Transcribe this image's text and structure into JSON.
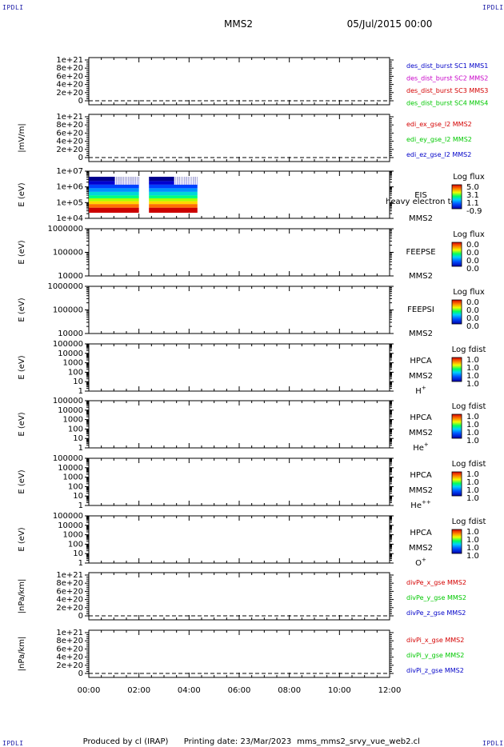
{
  "header": {
    "corner_mark": "IPDLI",
    "mission": "MMS2",
    "date": "05/Jul/2015 00:00"
  },
  "footer": {
    "credit": "Produced by cl (IRAP)",
    "printing": "Printing date: 23/Mar/2023",
    "script": "mms_mms2_srvy_vue_web2.cl"
  },
  "colors": {
    "blue": "#0000c8",
    "magenta": "#c800c8",
    "red": "#d40000",
    "green": "#00c800"
  },
  "chart_data": {
    "type": "heatmap",
    "x_ticks": [
      "00:00",
      "02:00",
      "04:00",
      "06:00",
      "08:00",
      "10:00",
      "12:00"
    ],
    "x_range": [
      "00:00",
      "12:00"
    ],
    "panels": [
      {
        "kind": "line",
        "ylabel": "",
        "yticks": [
          "0",
          "2e+20",
          "4e+20",
          "6e+20",
          "8e+20",
          "1e+21"
        ],
        "legend": [
          {
            "text": "des_dist_burst SC1 MMS1",
            "color": "#0000c8"
          },
          {
            "text": "des_dist_burst SC2 MMS2",
            "color": "#c800c8"
          },
          {
            "text": "des_dist_burst SC3 MMS3",
            "color": "#d40000"
          },
          {
            "text": "des_dist_burst SC4 MMS4",
            "color": "#00c800"
          }
        ],
        "zero_line": true
      },
      {
        "kind": "line",
        "ylabel": "|mV/m|",
        "yticks": [
          "0",
          "2e+20",
          "4e+20",
          "6e+20",
          "8e+20",
          "1e+21"
        ],
        "legend": [
          {
            "text": "edi_ex_gse_l2 MMS2",
            "color": "#d40000"
          },
          {
            "text": "edi_ey_gse_l2 MMS2",
            "color": "#00c800"
          },
          {
            "text": "edi_ez_gse_l2 MMS2",
            "color": "#0000c8"
          }
        ],
        "zero_line": true
      },
      {
        "kind": "spectrogram",
        "ylabel": "E (eV)",
        "yticks": [
          "1e+04",
          "1e+05",
          "1e+06",
          "1e+07"
        ],
        "instrument": "EIS",
        "overlay_label": "heavy electron tof",
        "sc_label": "MMS2",
        "species": "",
        "cbar_title": "Log flux",
        "cbar_values": [
          "5.0",
          "3.1",
          "1.1",
          "-0.9"
        ],
        "data_segments": [
          {
            "start": "00:00",
            "end": "02:00"
          },
          {
            "start": "02:24",
            "end": "04:20"
          }
        ]
      },
      {
        "kind": "spectrogram",
        "ylabel": "E (eV)",
        "yticks": [
          "10000",
          "100000",
          "1000000"
        ],
        "instrument": "FEEPSE",
        "overlay_label": "",
        "sc_label": "MMS2",
        "species": "",
        "cbar_title": "Log flux",
        "cbar_values": [
          "0.0",
          "0.0",
          "0.0",
          "0.0"
        ]
      },
      {
        "kind": "spectrogram",
        "ylabel": "E (eV)",
        "yticks": [
          "10000",
          "100000",
          "1000000"
        ],
        "instrument": "FEEPSI",
        "overlay_label": "",
        "sc_label": "MMS2",
        "species": "",
        "cbar_title": "Log flux",
        "cbar_values": [
          "0.0",
          "0.0",
          "0.0",
          "0.0"
        ]
      },
      {
        "kind": "spectrogram",
        "ylabel": "E (eV)",
        "yticks": [
          "1",
          "10",
          "100",
          "1000",
          "10000",
          "100000"
        ],
        "instrument": "HPCA",
        "overlay_label": "",
        "sc_label": "MMS2",
        "species": "H+",
        "species_base": "H",
        "species_sup": "+",
        "cbar_title": "Log fdist",
        "cbar_values": [
          "1.0",
          "1.0",
          "1.0",
          "1.0"
        ]
      },
      {
        "kind": "spectrogram",
        "ylabel": "E (eV)",
        "yticks": [
          "1",
          "10",
          "100",
          "1000",
          "10000",
          "100000"
        ],
        "instrument": "HPCA",
        "overlay_label": "",
        "sc_label": "MMS2",
        "species": "He+",
        "species_base": "He",
        "species_sup": "+",
        "cbar_title": "Log fdist",
        "cbar_values": [
          "1.0",
          "1.0",
          "1.0",
          "1.0"
        ]
      },
      {
        "kind": "spectrogram",
        "ylabel": "E (eV)",
        "yticks": [
          "1",
          "10",
          "100",
          "1000",
          "10000",
          "100000"
        ],
        "instrument": "HPCA",
        "overlay_label": "",
        "sc_label": "MMS2",
        "species": "He++",
        "species_base": "He",
        "species_sup": "++",
        "cbar_title": "Log fdist",
        "cbar_values": [
          "1.0",
          "1.0",
          "1.0",
          "1.0"
        ]
      },
      {
        "kind": "spectrogram",
        "ylabel": "E (eV)",
        "yticks": [
          "1",
          "10",
          "100",
          "1000",
          "10000",
          "100000"
        ],
        "instrument": "HPCA",
        "overlay_label": "",
        "sc_label": "MMS2",
        "species": "O+",
        "species_base": "O",
        "species_sup": "+",
        "cbar_title": "Log fdist",
        "cbar_values": [
          "1.0",
          "1.0",
          "1.0",
          "1.0"
        ]
      },
      {
        "kind": "line",
        "ylabel": "|nPa/km|",
        "yticks": [
          "0",
          "2e+20",
          "4e+20",
          "6e+20",
          "8e+20",
          "1e+21"
        ],
        "legend": [
          {
            "text": "divPe_x_gse MMS2",
            "color": "#d40000"
          },
          {
            "text": "divPe_y_gse MMS2",
            "color": "#00c800"
          },
          {
            "text": "divPe_z_gse MMS2",
            "color": "#0000c8"
          }
        ],
        "zero_line": true
      },
      {
        "kind": "line",
        "ylabel": "|nPa/km|",
        "yticks": [
          "0",
          "2e+20",
          "4e+20",
          "6e+20",
          "8e+20",
          "1e+21"
        ],
        "legend": [
          {
            "text": "divPi_x_gse MMS2",
            "color": "#d40000"
          },
          {
            "text": "divPi_y_gse MMS2",
            "color": "#00c800"
          },
          {
            "text": "divPi_z_gse MMS2",
            "color": "#0000c8"
          }
        ],
        "zero_line": true
      }
    ]
  }
}
